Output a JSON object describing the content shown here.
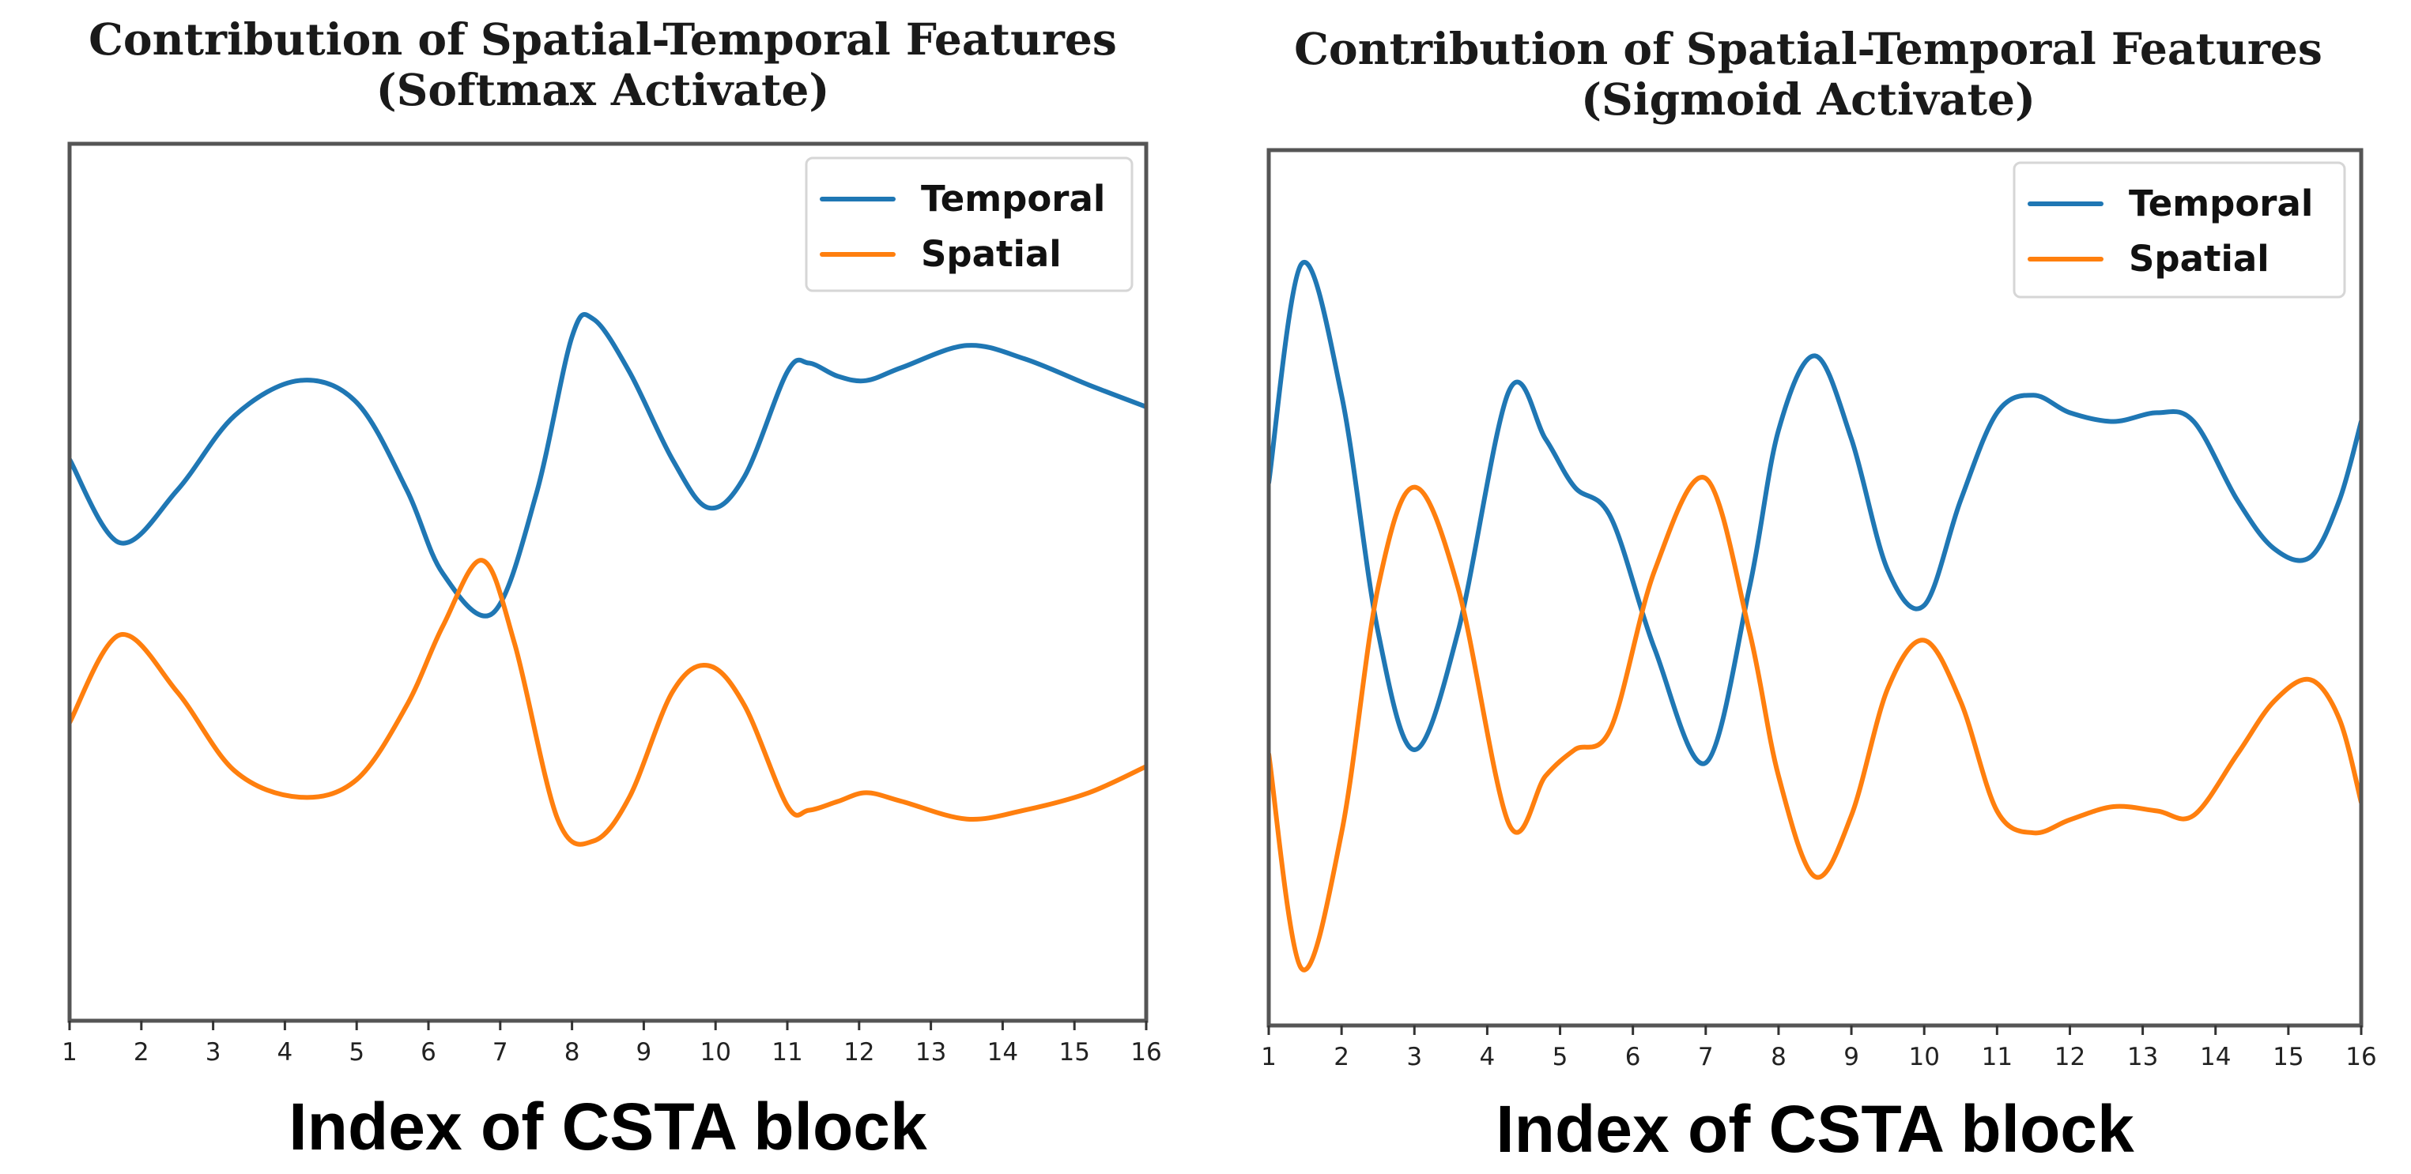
{
  "chart_data": [
    {
      "type": "line",
      "title": "Contribution of Spatial-Temporal Features",
      "subtitle": "(Softmax Activate)",
      "xlabel": "Index of CSTA block",
      "ylabel": "",
      "x_ticks": [
        "1",
        "2",
        "3",
        "4",
        "5",
        "6",
        "7",
        "8",
        "9",
        "10",
        "11",
        "12",
        "13",
        "14",
        "15",
        "16"
      ],
      "xlim": [
        1,
        16
      ],
      "ylim": [
        0,
        1
      ],
      "legend_position": "top-right",
      "grid": false,
      "series": [
        {
          "name": "Temporal",
          "color": "#1f77b4",
          "x": [
            1,
            1.7,
            2.5,
            3.3,
            4.2,
            5.0,
            5.7,
            6.2,
            6.9,
            7.5,
            8.0,
            8.3,
            8.8,
            9.4,
            9.9,
            10.4,
            11.0,
            11.3,
            11.7,
            12.1,
            12.6,
            13.5,
            14.3,
            15.2,
            16.0
          ],
          "y": [
            0.64,
            0.545,
            0.605,
            0.69,
            0.73,
            0.705,
            0.605,
            0.51,
            0.465,
            0.6,
            0.78,
            0.8,
            0.74,
            0.64,
            0.585,
            0.62,
            0.74,
            0.75,
            0.735,
            0.73,
            0.745,
            0.77,
            0.755,
            0.725,
            0.7
          ]
        },
        {
          "name": "Spatial",
          "color": "#ff7f0e",
          "x": [
            1,
            1.7,
            2.5,
            3.3,
            4.2,
            5.0,
            5.7,
            6.2,
            6.75,
            7.2,
            7.8,
            8.3,
            8.8,
            9.4,
            9.9,
            10.4,
            11.0,
            11.3,
            11.7,
            12.1,
            12.6,
            13.5,
            14.3,
            15.2,
            16.0
          ],
          "y": [
            0.34,
            0.44,
            0.375,
            0.285,
            0.255,
            0.275,
            0.36,
            0.45,
            0.525,
            0.43,
            0.23,
            0.205,
            0.255,
            0.375,
            0.405,
            0.36,
            0.245,
            0.24,
            0.25,
            0.26,
            0.25,
            0.23,
            0.24,
            0.26,
            0.29
          ]
        }
      ]
    },
    {
      "type": "line",
      "title": "Contribution of Spatial-Temporal Features",
      "subtitle": "(Sigmoid Activate)",
      "xlabel": "Index of CSTA block",
      "ylabel": "",
      "x_ticks": [
        "1",
        "2",
        "3",
        "4",
        "5",
        "6",
        "7",
        "8",
        "9",
        "10",
        "11",
        "12",
        "13",
        "14",
        "15",
        "16"
      ],
      "xlim": [
        1,
        16
      ],
      "ylim": [
        0,
        1
      ],
      "legend_position": "top-right",
      "grid": false,
      "series": [
        {
          "name": "Temporal",
          "color": "#1f77b4",
          "x": [
            1,
            1.45,
            2.0,
            2.5,
            3.0,
            3.6,
            4.3,
            4.8,
            5.2,
            5.7,
            6.3,
            7.0,
            7.6,
            8.0,
            8.5,
            9.0,
            9.5,
            10.0,
            10.5,
            11.0,
            11.5,
            12.0,
            12.6,
            13.2,
            13.7,
            14.3,
            14.8,
            15.3,
            15.7,
            16.0
          ],
          "y": [
            0.62,
            0.87,
            0.72,
            0.45,
            0.315,
            0.45,
            0.725,
            0.67,
            0.615,
            0.58,
            0.43,
            0.3,
            0.5,
            0.68,
            0.765,
            0.67,
            0.52,
            0.48,
            0.6,
            0.7,
            0.72,
            0.7,
            0.69,
            0.7,
            0.69,
            0.6,
            0.545,
            0.535,
            0.6,
            0.69
          ]
        },
        {
          "name": "Spatial",
          "color": "#ff7f0e",
          "x": [
            1,
            1.45,
            2.0,
            2.5,
            3.0,
            3.6,
            4.3,
            4.8,
            5.2,
            5.7,
            6.3,
            7.0,
            7.6,
            8.0,
            8.5,
            9.0,
            9.5,
            10.0,
            10.5,
            11.0,
            11.5,
            12.0,
            12.6,
            13.2,
            13.7,
            14.3,
            14.8,
            15.3,
            15.7,
            16.0
          ],
          "y": [
            0.31,
            0.065,
            0.22,
            0.5,
            0.615,
            0.5,
            0.23,
            0.285,
            0.315,
            0.34,
            0.52,
            0.625,
            0.45,
            0.285,
            0.17,
            0.24,
            0.385,
            0.44,
            0.37,
            0.245,
            0.22,
            0.235,
            0.25,
            0.245,
            0.24,
            0.31,
            0.37,
            0.395,
            0.35,
            0.255
          ]
        }
      ]
    }
  ]
}
